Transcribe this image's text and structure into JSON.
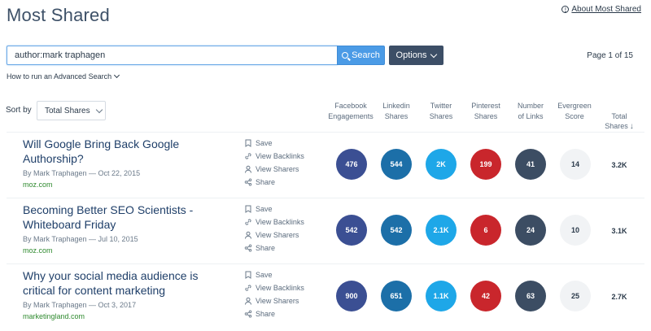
{
  "header": {
    "title": "Most Shared",
    "about_link": "About Most Shared",
    "info_icon": "i"
  },
  "search": {
    "value": "author:mark traphagen",
    "button_label": "Search",
    "options_label": "Options",
    "page_indicator": "Page 1 of 15",
    "advanced_link": "How to run an Advanced Search"
  },
  "sort": {
    "label": "Sort by",
    "selected": "Total Shares"
  },
  "columns": {
    "facebook": "Facebook\nEngagements",
    "linkedin": "Linkedin\nShares",
    "twitter": "Twitter\nShares",
    "pinterest": "Pinterest\nShares",
    "links": "Number\nof Links",
    "evergreen": "Evergreen\nScore",
    "total": "Total\nShares",
    "total_arrow": "↓"
  },
  "actions": {
    "save": "Save",
    "backlinks": "View Backlinks",
    "sharers": "View Sharers",
    "share": "Share"
  },
  "results": [
    {
      "title": "Will Google Bring Back Google Authorship?",
      "meta": "By Mark Traphagen — Oct 22, 2015",
      "domain": "moz.com",
      "facebook": "476",
      "linkedin": "544",
      "twitter": "2K",
      "pinterest": "199",
      "links": "41",
      "evergreen": "14",
      "total": "3.2K"
    },
    {
      "title": "Becoming Better SEO Scientists - Whiteboard Friday",
      "meta": "By Mark Traphagen — Jul 10, 2015",
      "domain": "moz.com",
      "facebook": "542",
      "linkedin": "542",
      "twitter": "2.1K",
      "pinterest": "6",
      "links": "24",
      "evergreen": "10",
      "total": "3.1K"
    },
    {
      "title": "Why your social media audience is critical for content marketing",
      "meta": "By Mark Traphagen — Oct 3, 2017",
      "domain": "marketingland.com",
      "facebook": "900",
      "linkedin": "651",
      "twitter": "1.1K",
      "pinterest": "42",
      "links": "63",
      "evergreen": "25",
      "total": "2.7K"
    }
  ],
  "colors": {
    "facebook": "#3b4f93",
    "linkedin": "#1c6fa8",
    "twitter": "#1ea7e8",
    "pinterest": "#c9262c",
    "links": "#3c4d63",
    "evergreen": "#f1f3f5",
    "search_button": "#4b9be6",
    "options_button": "#3c4e66",
    "domain": "#2f8a2f"
  }
}
